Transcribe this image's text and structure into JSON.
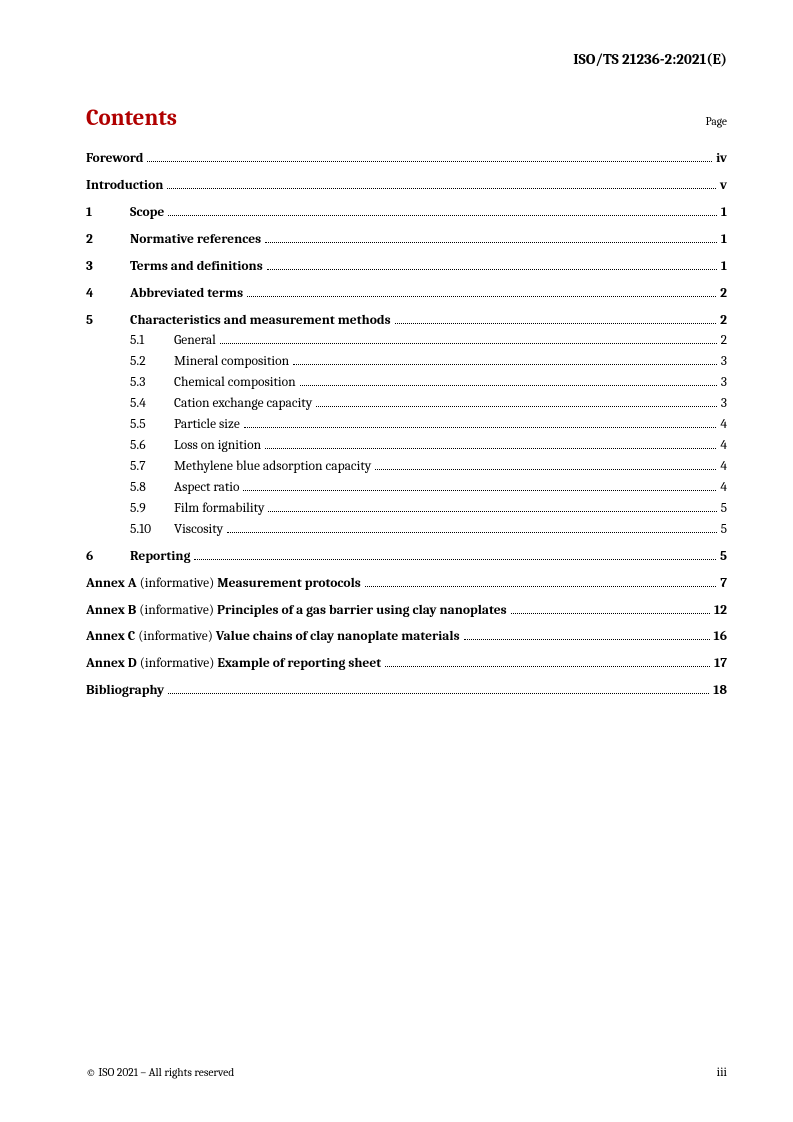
{
  "header": {
    "doc_id": "ISO/TS 21236-2:2021(E)"
  },
  "contents": {
    "title": "Contents",
    "page_label": "Page"
  },
  "toc": {
    "front": [
      {
        "title": "Foreword",
        "page": "iv"
      },
      {
        "title": "Introduction",
        "page": "v"
      }
    ],
    "sections": [
      {
        "num": "1",
        "title": "Scope",
        "page": "1"
      },
      {
        "num": "2",
        "title": "Normative references",
        "page": "1"
      },
      {
        "num": "3",
        "title": "Terms and definitions",
        "page": "1"
      },
      {
        "num": "4",
        "title": "Abbreviated terms",
        "page": "2"
      },
      {
        "num": "5",
        "title": "Characteristics and measurement methods",
        "page": "2",
        "subs": [
          {
            "num": "5.1",
            "title": "General",
            "page": "2"
          },
          {
            "num": "5.2",
            "title": "Mineral composition",
            "page": "3"
          },
          {
            "num": "5.3",
            "title": "Chemical composition",
            "page": "3"
          },
          {
            "num": "5.4",
            "title": "Cation exchange capacity",
            "page": "3"
          },
          {
            "num": "5.5",
            "title": "Particle size",
            "page": "4"
          },
          {
            "num": "5.6",
            "title": "Loss on ignition",
            "page": "4"
          },
          {
            "num": "5.7",
            "title": "Methylene blue adsorption capacity",
            "page": "4"
          },
          {
            "num": "5.8",
            "title": "Aspect ratio",
            "page": "4"
          },
          {
            "num": "5.9",
            "title": "Film formability",
            "page": "5"
          },
          {
            "num": "5.10",
            "title": "Viscosity",
            "page": "5"
          }
        ]
      },
      {
        "num": "6",
        "title": "Reporting",
        "page": "5"
      }
    ],
    "annexes": [
      {
        "prefix": "Annex A",
        "note": " (informative) ",
        "title": "Measurement protocols",
        "page": "7"
      },
      {
        "prefix": "Annex B",
        "note": " (informative) ",
        "title": "Principles of a gas barrier using clay nanoplates",
        "page": "12"
      },
      {
        "prefix": "Annex C",
        "note": " (informative) ",
        "title": "Value chains of clay nanoplate materials",
        "page": "16"
      },
      {
        "prefix": "Annex D",
        "note": " (informative) ",
        "title": "Example of reporting sheet",
        "page": "17"
      }
    ],
    "back": [
      {
        "title": "Bibliography",
        "page": "18"
      }
    ]
  },
  "footer": {
    "copyright": "© ISO 2021 – All rights reserved",
    "page_num": "iii"
  },
  "style": {
    "accent_color": "#b00000",
    "text_color": "#000000",
    "background": "#ffffff",
    "body_fontsize_pt": 10,
    "title_fontsize_pt": 17,
    "font_family": "Cambria/Georgia serif"
  }
}
